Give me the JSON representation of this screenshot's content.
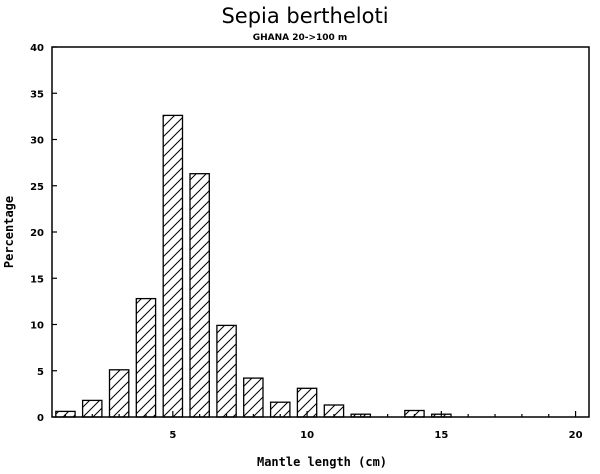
{
  "chart_data": {
    "type": "bar",
    "title": "Sepia bertheloti",
    "subtitle": "GHANA 20->100 m",
    "xlabel": "Mantle length (cm)",
    "ylabel": "Percentage",
    "xlim": [
      0.5,
      20.5
    ],
    "ylim": [
      0,
      40
    ],
    "x_ticks": [
      5,
      10,
      15,
      20
    ],
    "y_ticks": [
      0,
      5,
      10,
      15,
      20,
      25,
      30,
      35,
      40
    ],
    "x": [
      1,
      2,
      3,
      4,
      5,
      6,
      7,
      8,
      9,
      10,
      11,
      12,
      13,
      14,
      15
    ],
    "values": [
      0.6,
      1.8,
      5.1,
      12.8,
      32.6,
      26.3,
      9.9,
      4.2,
      1.6,
      3.1,
      1.3,
      0.3,
      0,
      0.7,
      0.3
    ],
    "bar_fill": "hatched",
    "grid": false,
    "colors": {
      "bar_stroke": "#000000",
      "hatch": "#000000",
      "background": "#ffffff"
    }
  }
}
